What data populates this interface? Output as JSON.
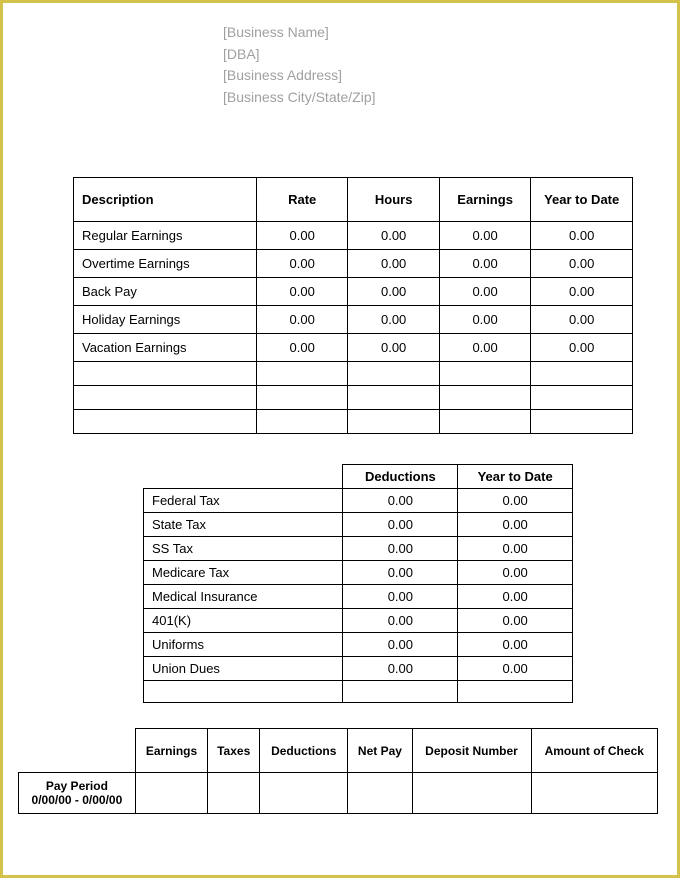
{
  "header": {
    "business_name": "[Business Name]",
    "dba": "[DBA]",
    "address": "[Business Address]",
    "city_state_zip": "[Business City/State/Zip]"
  },
  "earnings_table": {
    "columns": [
      "Description",
      "Rate",
      "Hours",
      "Earnings",
      "Year to Date"
    ],
    "rows": [
      {
        "desc": "Regular Earnings",
        "rate": "0.00",
        "hours": "0.00",
        "earnings": "0.00",
        "ytd": "0.00"
      },
      {
        "desc": "Overtime Earnings",
        "rate": "0.00",
        "hours": "0.00",
        "earnings": "0.00",
        "ytd": "0.00"
      },
      {
        "desc": "Back Pay",
        "rate": "0.00",
        "hours": "0.00",
        "earnings": "0.00",
        "ytd": "0.00"
      },
      {
        "desc": "Holiday Earnings",
        "rate": "0.00",
        "hours": "0.00",
        "earnings": "0.00",
        "ytd": "0.00"
      },
      {
        "desc": "Vacation Earnings",
        "rate": "0.00",
        "hours": "0.00",
        "earnings": "0.00",
        "ytd": "0.00"
      },
      {
        "desc": "",
        "rate": "",
        "hours": "",
        "earnings": "",
        "ytd": ""
      },
      {
        "desc": "",
        "rate": "",
        "hours": "",
        "earnings": "",
        "ytd": ""
      },
      {
        "desc": "",
        "rate": "",
        "hours": "",
        "earnings": "",
        "ytd": ""
      }
    ]
  },
  "deductions_table": {
    "columns": [
      "Deductions",
      "Year to Date"
    ],
    "rows": [
      {
        "label": "Federal Tax",
        "deductions": "0.00",
        "ytd": "0.00"
      },
      {
        "label": "State Tax",
        "deductions": "0.00",
        "ytd": "0.00"
      },
      {
        "label": "SS Tax",
        "deductions": "0.00",
        "ytd": "0.00"
      },
      {
        "label": "Medicare Tax",
        "deductions": "0.00",
        "ytd": "0.00"
      },
      {
        "label": "Medical Insurance",
        "deductions": "0.00",
        "ytd": "0.00"
      },
      {
        "label": "401(K)",
        "deductions": "0.00",
        "ytd": "0.00"
      },
      {
        "label": "Uniforms",
        "deductions": "0.00",
        "ytd": "0.00"
      },
      {
        "label": "Union Dues",
        "deductions": "0.00",
        "ytd": "0.00"
      },
      {
        "label": "",
        "deductions": "",
        "ytd": ""
      }
    ]
  },
  "summary_table": {
    "columns": [
      "Earnings",
      "Taxes",
      "Deductions",
      "Net Pay",
      "Deposit Number",
      "Amount of Check"
    ],
    "pay_period_label": "Pay Period",
    "pay_period_value": "0/00/00 - 0/00/00"
  }
}
